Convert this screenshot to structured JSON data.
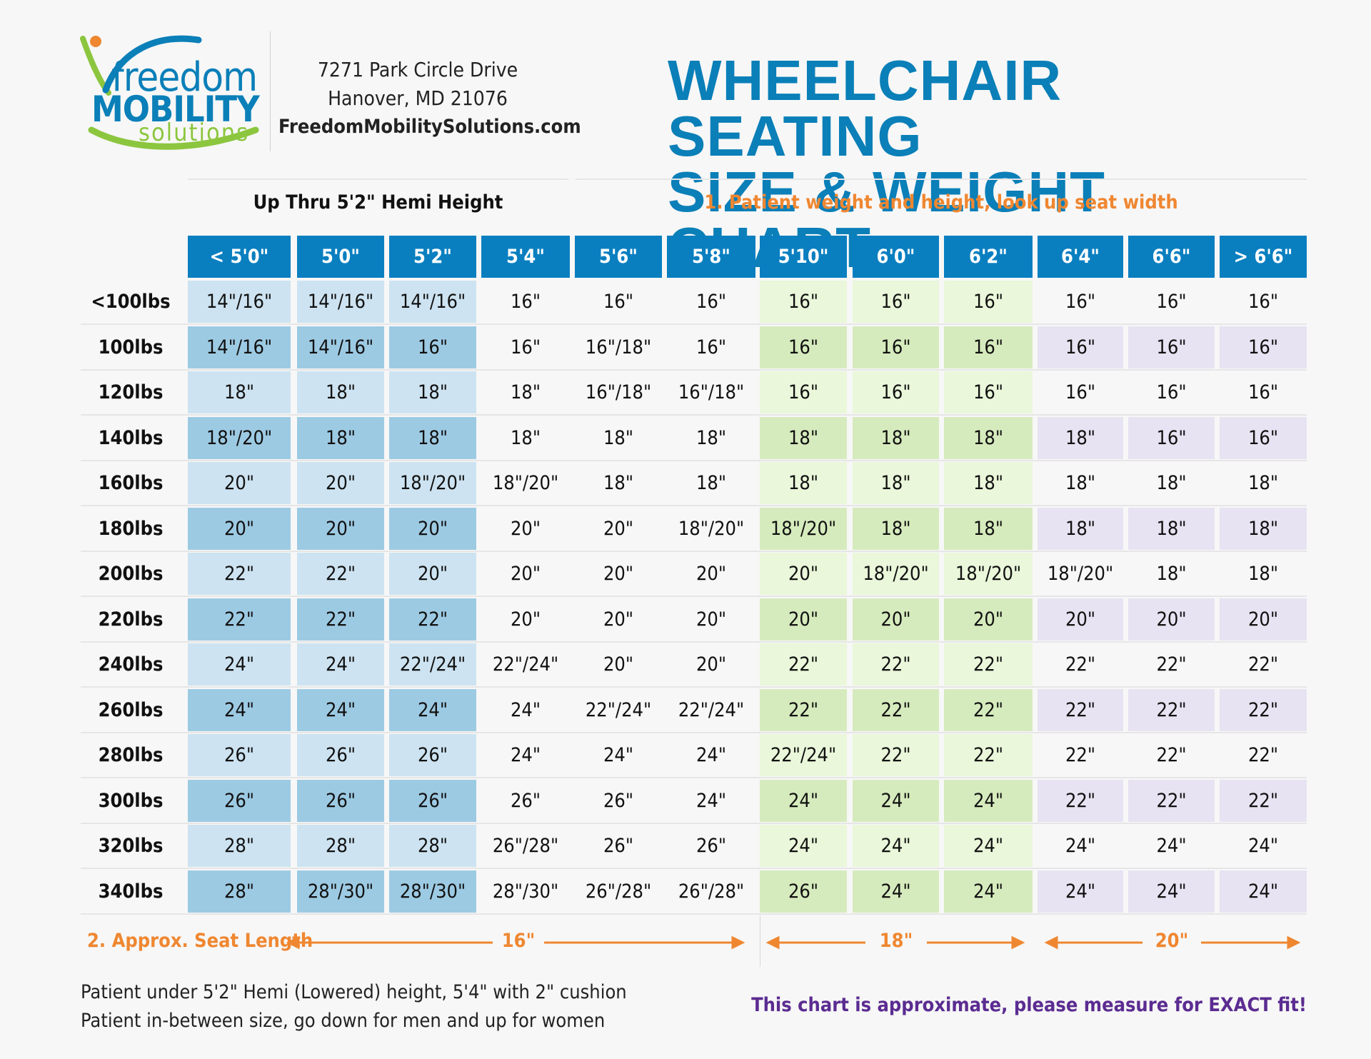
{
  "header": {
    "logo": {
      "line1": "freedom",
      "line2": "MOBILITY",
      "line3": "solutions"
    },
    "address": {
      "street": "7271 Park Circle Drive",
      "city": "Hanover, MD 21076",
      "website": "FreedomMobilitySolutions.com"
    },
    "title": {
      "line1": "WHEELCHAIR SEATING",
      "line2": "SIZE & WEIGHT CHART"
    }
  },
  "sections": {
    "hemi_label": "Up Thru 5'2\" Hemi Height",
    "instruction_1": "1. Patient weight and height, look up seat width"
  },
  "table": {
    "heights": [
      "< 5'0\"",
      "5'0\"",
      "5'2\"",
      "5'4\"",
      "5'6\"",
      "5'8\"",
      "5'10\"",
      "6'0\"",
      "6'2\"",
      "6'4\"",
      "6'6\"",
      "> 6'6\""
    ],
    "rows": [
      {
        "weight": "<100lbs",
        "values": [
          "14\"/16\"",
          "14\"/16\"",
          "14\"/16\"",
          "16\"",
          "16\"",
          "16\"",
          "16\"",
          "16\"",
          "16\"",
          "16\"",
          "16\"",
          "16\""
        ]
      },
      {
        "weight": "100lbs",
        "values": [
          "14\"/16\"",
          "14\"/16\"",
          "16\"",
          "16\"",
          "16\"/18\"",
          "16\"",
          "16\"",
          "16\"",
          "16\"",
          "16\"",
          "16\"",
          "16\""
        ]
      },
      {
        "weight": "120lbs",
        "values": [
          "18\"",
          "18\"",
          "18\"",
          "18\"",
          "16\"/18\"",
          "16\"/18\"",
          "16\"",
          "16\"",
          "16\"",
          "16\"",
          "16\"",
          "16\""
        ]
      },
      {
        "weight": "140lbs",
        "values": [
          "18\"/20\"",
          "18\"",
          "18\"",
          "18\"",
          "18\"",
          "18\"",
          "18\"",
          "18\"",
          "18\"",
          "18\"",
          "16\"",
          "16\""
        ]
      },
      {
        "weight": "160lbs",
        "values": [
          "20\"",
          "20\"",
          "18\"/20\"",
          "18\"/20\"",
          "18\"",
          "18\"",
          "18\"",
          "18\"",
          "18\"",
          "18\"",
          "18\"",
          "18\""
        ]
      },
      {
        "weight": "180lbs",
        "values": [
          "20\"",
          "20\"",
          "20\"",
          "20\"",
          "20\"",
          "18\"/20\"",
          "18\"/20\"",
          "18\"",
          "18\"",
          "18\"",
          "18\"",
          "18\""
        ]
      },
      {
        "weight": "200lbs",
        "values": [
          "22\"",
          "22\"",
          "20\"",
          "20\"",
          "20\"",
          "20\"",
          "20\"",
          "18\"/20\"",
          "18\"/20\"",
          "18\"/20\"",
          "18\"",
          "18\""
        ]
      },
      {
        "weight": "220lbs",
        "values": [
          "22\"",
          "22\"",
          "22\"",
          "20\"",
          "20\"",
          "20\"",
          "20\"",
          "20\"",
          "20\"",
          "20\"",
          "20\"",
          "20\""
        ]
      },
      {
        "weight": "240lbs",
        "values": [
          "24\"",
          "24\"",
          "22\"/24\"",
          "22\"/24\"",
          "20\"",
          "20\"",
          "22\"",
          "22\"",
          "22\"",
          "22\"",
          "22\"",
          "22\""
        ]
      },
      {
        "weight": "260lbs",
        "values": [
          "24\"",
          "24\"",
          "24\"",
          "24\"",
          "22\"/24\"",
          "22\"/24\"",
          "22\"",
          "22\"",
          "22\"",
          "22\"",
          "22\"",
          "22\""
        ]
      },
      {
        "weight": "280lbs",
        "values": [
          "26\"",
          "26\"",
          "26\"",
          "24\"",
          "24\"",
          "24\"",
          "22\"/24\"",
          "22\"",
          "22\"",
          "22\"",
          "22\"",
          "22\""
        ]
      },
      {
        "weight": "300lbs",
        "values": [
          "26\"",
          "26\"",
          "26\"",
          "26\"",
          "26\"",
          "24\"",
          "24\"",
          "24\"",
          "24\"",
          "22\"",
          "22\"",
          "22\""
        ]
      },
      {
        "weight": "320lbs",
        "values": [
          "28\"",
          "28\"",
          "28\"",
          "26\"/28\"",
          "26\"",
          "26\"",
          "24\"",
          "24\"",
          "24\"",
          "24\"",
          "24\"",
          "24\""
        ]
      },
      {
        "weight": "340lbs",
        "values": [
          "28\"",
          "28\"/30\"",
          "28\"/30\"",
          "28\"/30\"",
          "26\"/28\"",
          "26\"/28\"",
          "26\"",
          "24\"",
          "24\"",
          "24\"",
          "24\"",
          "24\""
        ]
      }
    ]
  },
  "seat_length": {
    "label": "2. Approx. Seat Length",
    "groups": [
      {
        "value": "16\""
      },
      {
        "value": "18\""
      },
      {
        "value": "20\""
      }
    ]
  },
  "notes": [
    "Patient under 5'2\" Hemi (Lowered) height, 5'4\" with 2\" cushion",
    "Patient in-between size, go down for men and up for women"
  ],
  "disclaimer": "This chart is approximate, please measure for EXACT fit!",
  "colors": {
    "brand_blue": "#0a7fc0",
    "orange": "#ef8731",
    "purple_text": "#5b2c91",
    "blue_light": "#cde3f1",
    "blue_dark": "#9dcae3",
    "green_light": "#eaf7da",
    "green_dark": "#d6ebbd",
    "purple_dark": "#e7e3f2"
  }
}
